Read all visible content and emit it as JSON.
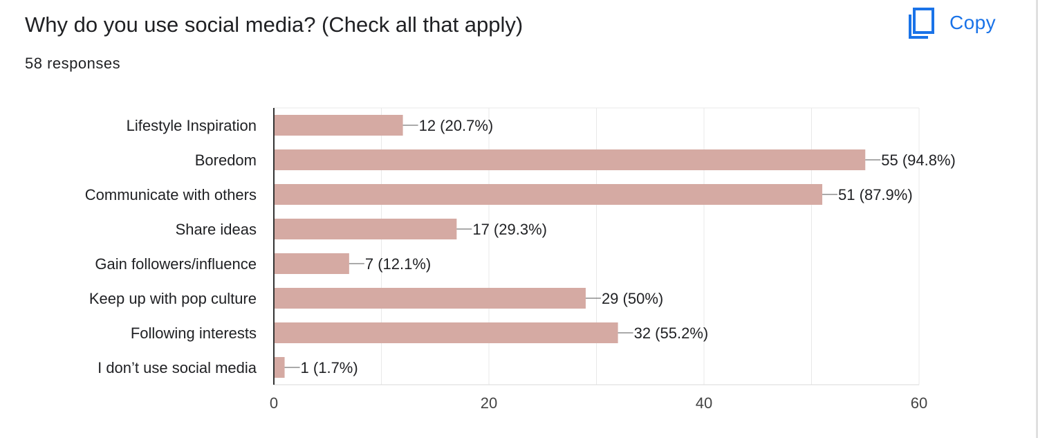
{
  "header": {
    "title": "Why do you use social media? (Check all that apply)",
    "responses": "58 responses",
    "copy_label": "Copy"
  },
  "colors": {
    "bar": "#d5aaa3",
    "accent": "#1a73e8",
    "grid": "#e8e8e8",
    "axis": "#333333"
  },
  "icons": {
    "copy": "copy-icon"
  },
  "chart_data": {
    "type": "bar",
    "orientation": "horizontal",
    "categories": [
      "Lifestyle Inspiration",
      "Boredom",
      "Communicate with others",
      "Share ideas",
      "Gain followers/influence",
      "Keep up with pop culture",
      "Following interests",
      "I don’t use social media"
    ],
    "values": [
      12,
      55,
      51,
      17,
      7,
      29,
      32,
      1
    ],
    "labels": [
      "12 (20.7%)",
      "55 (94.8%)",
      "51 (87.9%)",
      "17 (29.3%)",
      "7 (12.1%)",
      "29 (50%)",
      "32 (55.2%)",
      "1 (1.7%)"
    ],
    "xlim": [
      0,
      60
    ],
    "xticks": [
      0,
      20,
      40,
      60
    ],
    "grid": true,
    "legend": "none"
  }
}
